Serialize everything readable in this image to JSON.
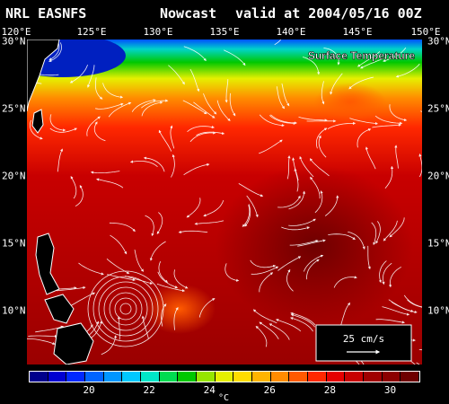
{
  "header": {
    "model": "NRL EASNFS",
    "mode": "Nowcast",
    "valid": "valid at 2004/05/16 00Z"
  },
  "map": {
    "field_label": "Surface Temperature",
    "lon_labels": [
      "120°E",
      "125°E",
      "130°E",
      "135°E",
      "140°E",
      "145°E",
      "150°E"
    ],
    "lat_labels": [
      "30°N",
      "25°N",
      "20°N",
      "15°N",
      "10°N"
    ],
    "lon_range": [
      120,
      150
    ],
    "lat_range": [
      5.5,
      30
    ],
    "legend_vector": {
      "label": "25 cm/s",
      "arrow_icon": "arrow-right-icon"
    },
    "land_color": "#000000",
    "coast_color": "#ffffff"
  },
  "colorbar": {
    "colors": [
      "#00008c",
      "#0000d2",
      "#0028ff",
      "#0064ff",
      "#0096ff",
      "#00c8ff",
      "#00e6c8",
      "#00dc50",
      "#00c800",
      "#96e600",
      "#e6f000",
      "#ffdc00",
      "#ffb400",
      "#ff8c00",
      "#ff5a00",
      "#ff2800",
      "#e60000",
      "#c80000",
      "#a00000",
      "#8c0000",
      "#6e0000"
    ],
    "tick_labels": [
      "20",
      "22",
      "24",
      "26",
      "28",
      "30"
    ],
    "tick_values": [
      20,
      22,
      24,
      26,
      28,
      30
    ],
    "range": [
      18,
      31
    ],
    "unit": "°C"
  }
}
